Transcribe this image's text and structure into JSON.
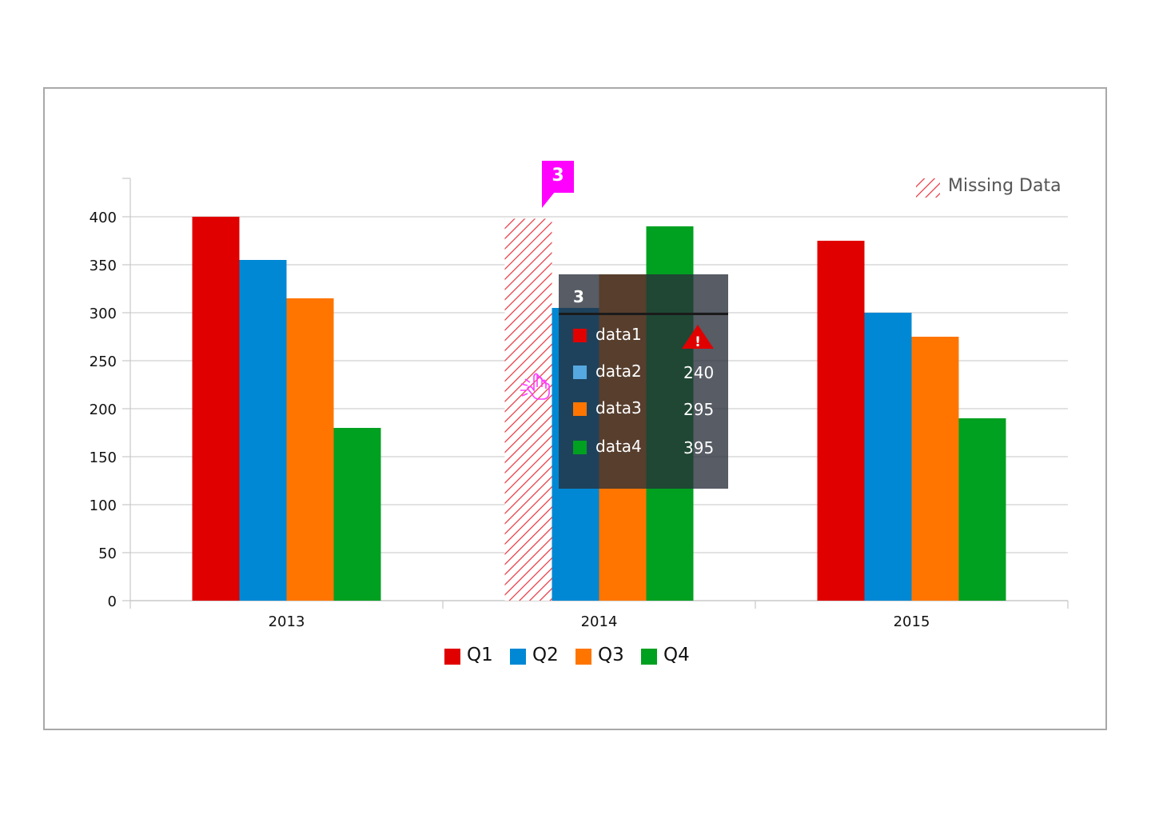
{
  "chart_data": {
    "type": "bar",
    "categories": [
      "2013",
      "2014",
      "2015"
    ],
    "series": [
      {
        "name": "Q1",
        "values": [
          400,
          null,
          375
        ],
        "color": "#e00000"
      },
      {
        "name": "Q2",
        "values": [
          355,
          305,
          300
        ],
        "color": "#0088d4"
      },
      {
        "name": "Q3",
        "values": [
          315,
          340,
          275
        ],
        "color": "#ff7500"
      },
      {
        "name": "Q4",
        "values": [
          180,
          390,
          190
        ],
        "color": "#00a020"
      }
    ],
    "missing": [
      {
        "series": "Q1",
        "category": "2014",
        "display_value": 398
      }
    ],
    "yticks": [
      0,
      50,
      100,
      150,
      200,
      250,
      300,
      350,
      400
    ],
    "ylim": [
      0,
      440
    ],
    "grid": true,
    "legend_placement": "bottom-center",
    "missing_legend": {
      "label": "Missing Data",
      "color": "#e8323c"
    },
    "flag": {
      "label": "3",
      "color": "#ff00ff"
    },
    "tooltip": {
      "title": "3",
      "rows": [
        {
          "name": "data1",
          "value": "",
          "swatch": "#e00000",
          "warning": true
        },
        {
          "name": "data2",
          "value": "240",
          "swatch": "#56a8e0"
        },
        {
          "name": "data3",
          "value": "295",
          "swatch": "#ff7500"
        },
        {
          "name": "data4",
          "value": "395",
          "swatch": "#00a020"
        }
      ]
    },
    "cursor_icon": "hand-pointer-icon"
  }
}
